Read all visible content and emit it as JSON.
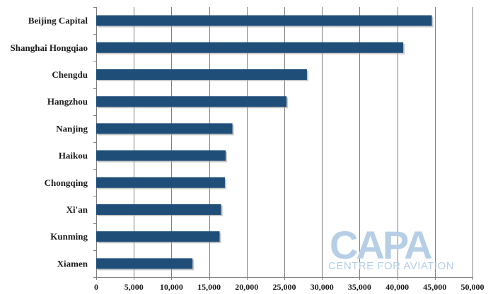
{
  "chart_data": {
    "type": "bar",
    "orientation": "horizontal",
    "categories": [
      "Beijing Capital",
      "Shanghai Hongqiao",
      "Chengdu",
      "Hangzhou",
      "Nanjing",
      "Haikou",
      "Chongqing",
      "Xi'an",
      "Kunming",
      "Xiamen"
    ],
    "values": [
      44600,
      40800,
      28000,
      25300,
      18100,
      17200,
      17100,
      16600,
      16400,
      12800
    ],
    "xlim": [
      0,
      50000
    ],
    "xticks": [
      "0",
      "5,000",
      "10,000",
      "15,000",
      "20,000",
      "25,000",
      "30,000",
      "35,000",
      "40,000",
      "45,000",
      "50,000"
    ],
    "grid": "vertical",
    "bar_color": "#1f4e79",
    "title": "",
    "xlabel": "",
    "ylabel": ""
  },
  "watermark": {
    "big": "CAPA",
    "small": "CENTRE FOR AVIATION",
    "color": "#b6cfe6"
  }
}
